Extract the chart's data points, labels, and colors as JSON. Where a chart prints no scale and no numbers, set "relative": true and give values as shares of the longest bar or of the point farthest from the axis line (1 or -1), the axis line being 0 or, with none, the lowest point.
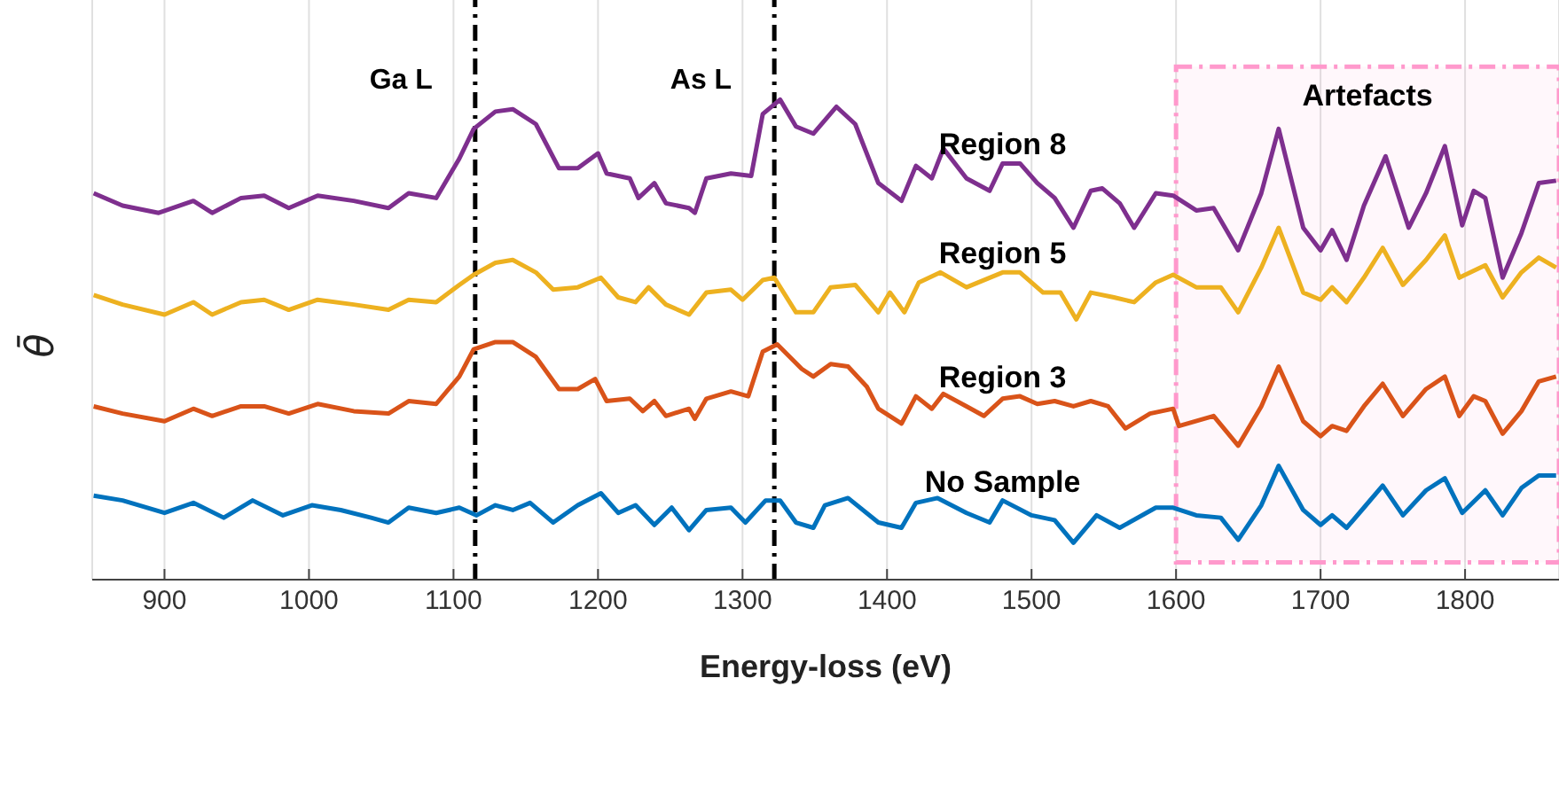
{
  "chart_data": {
    "type": "line",
    "relative": true,
    "xlabel": "Energy-loss (eV)",
    "ylabel": "θ̄",
    "xlim": [
      850,
      1865
    ],
    "xticks": [
      900,
      1000,
      1100,
      1200,
      1300,
      1400,
      1500,
      1600,
      1700,
      1800
    ],
    "grid": "x",
    "legend": false,
    "marker": "none",
    "line_style": "solid",
    "ref_lines": [
      {
        "axis": "x",
        "value": 1115,
        "label": "Ga L",
        "color": "#000000",
        "line_style": "dashed"
      },
      {
        "axis": "x",
        "value": 1322,
        "label": "As L",
        "color": "#000000",
        "line_style": "dashed"
      }
    ],
    "bands": [
      {
        "axis": "x",
        "from": 1600,
        "to": 1865,
        "label": "Artefacts",
        "color": "#ff99cc"
      }
    ],
    "series": [
      {
        "name": "Region 8",
        "color": "#7e2f8e",
        "x": [
          851,
          871,
          896,
          920,
          933,
          953,
          969,
          986,
          1006,
          1031,
          1055,
          1069,
          1088,
          1104,
          1114,
          1129,
          1141,
          1157,
          1173,
          1186,
          1200,
          1206,
          1222,
          1228,
          1239,
          1247,
          1263,
          1267,
          1275,
          1292,
          1306,
          1314,
          1326,
          1337,
          1349,
          1365,
          1378,
          1394,
          1410,
          1420,
          1431,
          1439,
          1455,
          1471,
          1480,
          1492,
          1504,
          1516,
          1529,
          1541,
          1549,
          1561,
          1571,
          1586,
          1598,
          1614,
          1626,
          1643,
          1659,
          1671,
          1688,
          1700,
          1708,
          1718,
          1730,
          1745,
          1761,
          1773,
          1786,
          1798,
          1806,
          1814,
          1826,
          1839,
          1851,
          1863
        ],
        "values": [
          0.805,
          0.779,
          0.764,
          0.789,
          0.764,
          0.795,
          0.8,
          0.774,
          0.8,
          0.789,
          0.774,
          0.805,
          0.795,
          0.877,
          0.939,
          0.975,
          0.98,
          0.949,
          0.857,
          0.857,
          0.888,
          0.846,
          0.836,
          0.795,
          0.826,
          0.784,
          0.774,
          0.764,
          0.836,
          0.846,
          0.841,
          0.97,
          1,
          0.944,
          0.929,
          0.985,
          0.949,
          0.826,
          0.789,
          0.862,
          0.836,
          0.898,
          0.836,
          0.81,
          0.867,
          0.867,
          0.826,
          0.795,
          0.733,
          0.81,
          0.815,
          0.784,
          0.733,
          0.805,
          0.8,
          0.769,
          0.774,
          0.686,
          0.805,
          0.939,
          0.733,
          0.686,
          0.728,
          0.666,
          0.779,
          0.882,
          0.733,
          0.805,
          0.903,
          0.738,
          0.81,
          0.795,
          0.629,
          0.722,
          0.826,
          0.831
        ]
      },
      {
        "name": "Region 5",
        "color": "#edb120",
        "x": [
          851,
          871,
          900,
          920,
          933,
          953,
          969,
          986,
          1006,
          1031,
          1055,
          1069,
          1088,
          1104,
          1114,
          1129,
          1141,
          1157,
          1169,
          1186,
          1202,
          1214,
          1226,
          1235,
          1247,
          1263,
          1275,
          1292,
          1300,
          1314,
          1322,
          1337,
          1349,
          1361,
          1378,
          1394,
          1402,
          1412,
          1422,
          1437,
          1455,
          1480,
          1492,
          1508,
          1520,
          1531,
          1541,
          1557,
          1571,
          1586,
          1598,
          1614,
          1631,
          1643,
          1659,
          1671,
          1688,
          1700,
          1708,
          1718,
          1730,
          1743,
          1757,
          1773,
          1786,
          1796,
          1814,
          1826,
          1839,
          1851,
          1863
        ],
        "values": [
          0.593,
          0.573,
          0.552,
          0.578,
          0.552,
          0.578,
          0.583,
          0.562,
          0.583,
          0.573,
          0.562,
          0.583,
          0.578,
          0.614,
          0.635,
          0.66,
          0.666,
          0.64,
          0.604,
          0.609,
          0.629,
          0.588,
          0.578,
          0.609,
          0.573,
          0.552,
          0.598,
          0.604,
          0.583,
          0.624,
          0.629,
          0.557,
          0.557,
          0.609,
          0.614,
          0.557,
          0.598,
          0.557,
          0.619,
          0.64,
          0.609,
          0.64,
          0.64,
          0.598,
          0.598,
          0.542,
          0.598,
          0.588,
          0.578,
          0.619,
          0.635,
          0.609,
          0.609,
          0.557,
          0.65,
          0.733,
          0.598,
          0.583,
          0.609,
          0.578,
          0.629,
          0.691,
          0.614,
          0.666,
          0.717,
          0.629,
          0.655,
          0.588,
          0.64,
          0.671,
          0.65
        ]
      },
      {
        "name": "Region 3",
        "color": "#d95319",
        "x": [
          851,
          871,
          900,
          920,
          933,
          953,
          969,
          986,
          1006,
          1031,
          1055,
          1069,
          1088,
          1104,
          1114,
          1129,
          1141,
          1157,
          1173,
          1186,
          1198,
          1206,
          1222,
          1231,
          1239,
          1247,
          1263,
          1267,
          1275,
          1292,
          1304,
          1314,
          1324,
          1341,
          1349,
          1361,
          1373,
          1386,
          1394,
          1410,
          1420,
          1431,
          1439,
          1455,
          1467,
          1480,
          1492,
          1504,
          1516,
          1529,
          1541,
          1553,
          1565,
          1582,
          1598,
          1602,
          1626,
          1643,
          1659,
          1671,
          1688,
          1700,
          1708,
          1718,
          1730,
          1743,
          1757,
          1773,
          1786,
          1796,
          1806,
          1814,
          1826,
          1839,
          1851,
          1863
        ],
        "values": [
          0.361,
          0.346,
          0.33,
          0.356,
          0.341,
          0.361,
          0.361,
          0.346,
          0.366,
          0.351,
          0.346,
          0.372,
          0.366,
          0.423,
          0.48,
          0.495,
          0.495,
          0.464,
          0.397,
          0.397,
          0.418,
          0.372,
          0.377,
          0.351,
          0.372,
          0.341,
          0.356,
          0.335,
          0.377,
          0.392,
          0.382,
          0.475,
          0.49,
          0.439,
          0.423,
          0.449,
          0.444,
          0.402,
          0.356,
          0.325,
          0.382,
          0.356,
          0.387,
          0.361,
          0.341,
          0.377,
          0.382,
          0.366,
          0.372,
          0.361,
          0.372,
          0.361,
          0.315,
          0.346,
          0.356,
          0.32,
          0.341,
          0.279,
          0.361,
          0.444,
          0.33,
          0.299,
          0.32,
          0.31,
          0.361,
          0.408,
          0.341,
          0.397,
          0.423,
          0.341,
          0.382,
          0.372,
          0.304,
          0.351,
          0.413,
          0.423
        ]
      },
      {
        "name": "No Sample",
        "color": "#0072bd",
        "x": [
          851,
          871,
          900,
          920,
          941,
          961,
          982,
          1002,
          1022,
          1043,
          1055,
          1069,
          1088,
          1104,
          1116,
          1129,
          1141,
          1153,
          1169,
          1186,
          1202,
          1214,
          1226,
          1239,
          1251,
          1263,
          1275,
          1292,
          1302,
          1316,
          1326,
          1337,
          1349,
          1357,
          1373,
          1394,
          1410,
          1420,
          1435,
          1455,
          1471,
          1480,
          1500,
          1516,
          1529,
          1545,
          1561,
          1586,
          1598,
          1614,
          1631,
          1643,
          1659,
          1671,
          1688,
          1700,
          1708,
          1718,
          1730,
          1743,
          1757,
          1773,
          1786,
          1798,
          1814,
          1826,
          1839,
          1851,
          1863
        ],
        "values": [
          0.175,
          0.165,
          0.139,
          0.16,
          0.129,
          0.165,
          0.134,
          0.155,
          0.145,
          0.129,
          0.119,
          0.15,
          0.139,
          0.15,
          0.134,
          0.155,
          0.145,
          0.16,
          0.119,
          0.155,
          0.18,
          0.139,
          0.155,
          0.114,
          0.15,
          0.103,
          0.145,
          0.15,
          0.119,
          0.165,
          0.165,
          0.119,
          0.108,
          0.155,
          0.17,
          0.119,
          0.108,
          0.16,
          0.17,
          0.139,
          0.119,
          0.165,
          0.134,
          0.124,
          0.077,
          0.134,
          0.108,
          0.15,
          0.15,
          0.134,
          0.129,
          0.083,
          0.155,
          0.237,
          0.145,
          0.114,
          0.134,
          0.108,
          0.15,
          0.196,
          0.134,
          0.186,
          0.211,
          0.139,
          0.186,
          0.134,
          0.191,
          0.217,
          0.217
        ]
      }
    ]
  }
}
